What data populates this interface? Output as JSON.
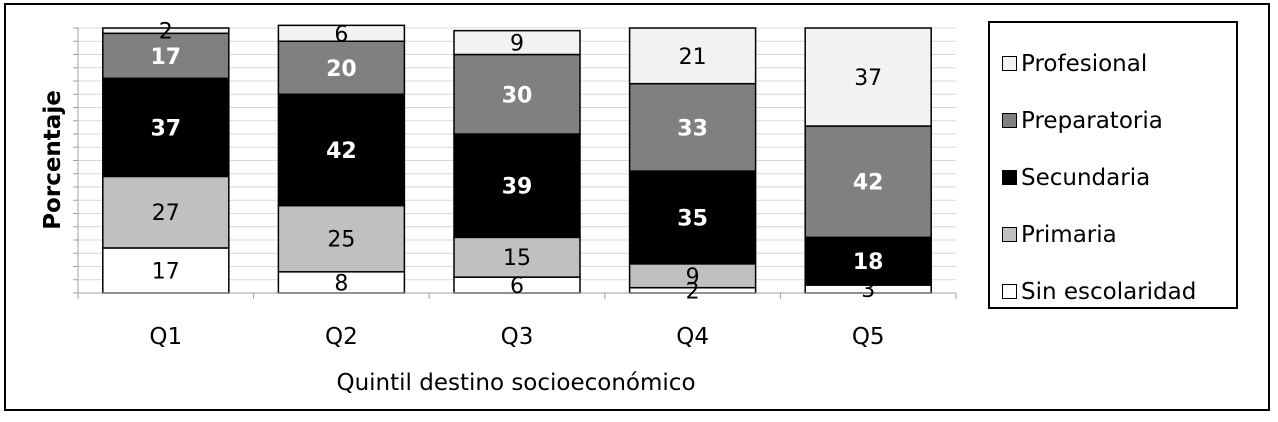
{
  "chart_data": {
    "type": "bar",
    "stacked": true,
    "title": "",
    "xlabel": "Quintil destino socioeconómico",
    "ylabel": "Porcentaje",
    "ylim": [
      0,
      100
    ],
    "grid": true,
    "legend_position": "right",
    "categories": [
      "Q1",
      "Q2",
      "Q3",
      "Q4",
      "Q5"
    ],
    "series": [
      {
        "name": "Sin escolaridad",
        "color": "#ffffff",
        "label_color": "#000000",
        "values": [
          17,
          8,
          6,
          2,
          3
        ]
      },
      {
        "name": "Primaria",
        "color": "#c0c0c0",
        "label_color": "#000000",
        "values": [
          27,
          25,
          15,
          9,
          0
        ]
      },
      {
        "name": "Secundaria",
        "color": "#000000",
        "label_color": "#ffffff",
        "values": [
          37,
          42,
          39,
          35,
          18
        ]
      },
      {
        "name": "Preparatoria",
        "color": "#808080",
        "label_color": "#ffffff",
        "values": [
          17,
          20,
          30,
          33,
          42
        ]
      },
      {
        "name": "Profesional",
        "color": "#f2f2f2",
        "label_color": "#000000",
        "values": [
          2,
          6,
          9,
          21,
          37
        ]
      }
    ],
    "legend_order": [
      "Profesional",
      "Preparatoria",
      "Secundaria",
      "Primaria",
      "Sin escolaridad"
    ]
  }
}
